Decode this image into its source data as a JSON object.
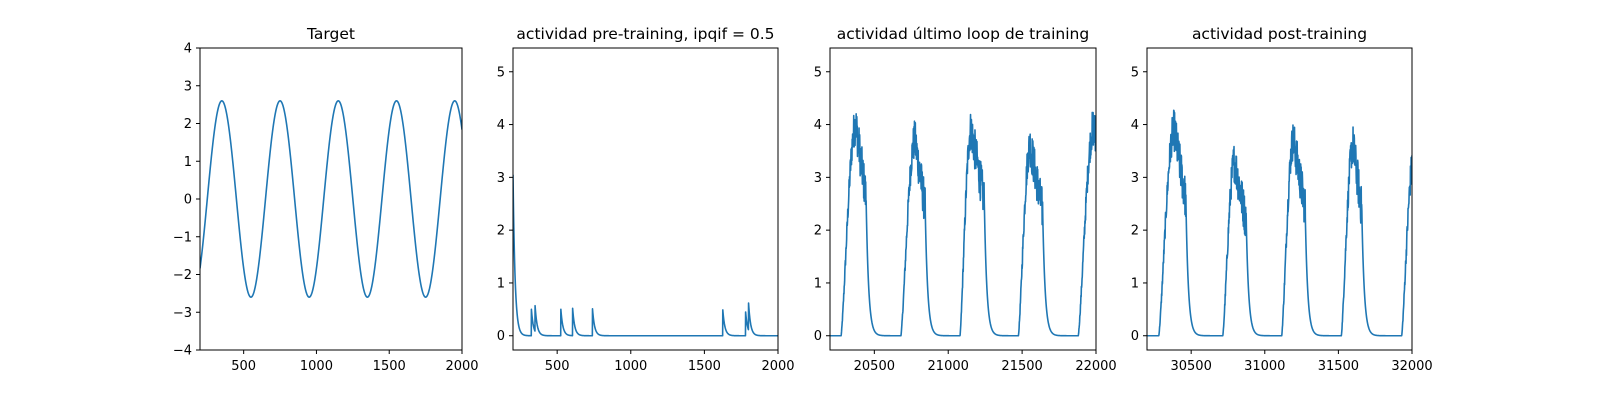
{
  "chart_data": [
    {
      "type": "line",
      "title": "Target",
      "xlim": [
        200,
        2000
      ],
      "ylim": [
        -4,
        4
      ],
      "xticks": [
        500,
        1000,
        1500,
        2000
      ],
      "xtick_labels": [
        "500",
        "1000",
        "1500",
        "2000"
      ],
      "yticks": [
        -4,
        -3,
        -2,
        -1,
        0,
        1,
        2,
        3,
        4
      ],
      "ytick_labels": [
        "−4",
        "−3",
        "−2",
        "−1",
        "0",
        "1",
        "2",
        "3",
        "4"
      ],
      "color": "#1f77b4",
      "series": [
        {
          "form": "sine",
          "amplitude": 2.6,
          "period": 400,
          "x_at_peak": 350,
          "x": [
            200,
            2000
          ]
        }
      ]
    },
    {
      "type": "line",
      "title": "actividad pre-training, ipqif = 0.5",
      "xlim": [
        200,
        2000
      ],
      "ylim": [
        -0.27,
        5.45
      ],
      "xticks": [
        500,
        1000,
        1500,
        2000
      ],
      "xtick_labels": [
        "500",
        "1000",
        "1500",
        "2000"
      ],
      "yticks": [
        0,
        1,
        2,
        3,
        4,
        5
      ],
      "ytick_labels": [
        "0",
        "1",
        "2",
        "3",
        "4",
        "5"
      ],
      "color": "#1f77b4",
      "series": [
        {
          "form": "spike_decay",
          "x": [
            200,
            2000
          ],
          "decay_constant": 14,
          "spikes": [
            {
              "x": 200,
              "y": 3.05
            },
            {
              "x": 325,
              "y": 0.5
            },
            {
              "x": 350,
              "y": 0.57
            },
            {
              "x": 525,
              "y": 0.5
            },
            {
              "x": 605,
              "y": 0.52
            },
            {
              "x": 740,
              "y": 0.51
            },
            {
              "x": 1625,
              "y": 0.49
            },
            {
              "x": 1780,
              "y": 0.45
            },
            {
              "x": 1800,
              "y": 0.62
            }
          ]
        }
      ]
    },
    {
      "type": "line",
      "title": "actividad último loop de training",
      "xlim": [
        20200,
        22000
      ],
      "ylim": [
        -0.27,
        5.45
      ],
      "xticks": [
        20500,
        21000,
        21500,
        22000
      ],
      "xtick_labels": [
        "20500",
        "21000",
        "21500",
        "22000"
      ],
      "yticks": [
        0,
        1,
        2,
        3,
        4,
        5
      ],
      "ytick_labels": [
        "0",
        "1",
        "2",
        "3",
        "4",
        "5"
      ],
      "color": "#1f77b4",
      "series": [
        {
          "form": "noisy_bumps",
          "x": [
            20200,
            22000
          ],
          "rise_time": 45,
          "decay_constant": 17,
          "bumps": [
            {
              "start": 20275,
              "peak_x": 20375,
              "peak_y": 4.0,
              "end": 20445
            },
            {
              "start": 20680,
              "peak_x": 20775,
              "peak_y": 3.7,
              "end": 20845
            },
            {
              "start": 21080,
              "peak_x": 21155,
              "peak_y": 3.9,
              "end": 21245
            },
            {
              "start": 21475,
              "peak_x": 21555,
              "peak_y": 3.6,
              "end": 21640
            },
            {
              "start": 21880,
              "peak_x": 21985,
              "peak_y": 3.95,
              "end": 22060
            }
          ]
        }
      ]
    },
    {
      "type": "line",
      "title": "actividad post-training",
      "xlim": [
        30200,
        32000
      ],
      "ylim": [
        -0.27,
        5.45
      ],
      "xticks": [
        30500,
        31000,
        31500,
        32000
      ],
      "xtick_labels": [
        "30500",
        "31000",
        "31500",
        "32000"
      ],
      "yticks": [
        0,
        1,
        2,
        3,
        4,
        5
      ],
      "ytick_labels": [
        "0",
        "1",
        "2",
        "3",
        "4",
        "5"
      ],
      "color": "#1f77b4",
      "series": [
        {
          "form": "noisy_bumps",
          "x": [
            30200,
            32000
          ],
          "rise_time": 45,
          "decay_constant": 17,
          "bumps": [
            {
              "start": 30280,
              "peak_x": 30385,
              "peak_y": 3.9,
              "end": 30465
            },
            {
              "start": 30715,
              "peak_x": 30795,
              "peak_y": 3.3,
              "end": 30875
            },
            {
              "start": 31115,
              "peak_x": 31195,
              "peak_y": 3.7,
              "end": 31275
            },
            {
              "start": 31520,
              "peak_x": 31600,
              "peak_y": 3.6,
              "end": 31660
            },
            {
              "start": 31930,
              "peak_x": 32010,
              "peak_y": 3.3,
              "end": 32080
            }
          ]
        }
      ]
    }
  ]
}
